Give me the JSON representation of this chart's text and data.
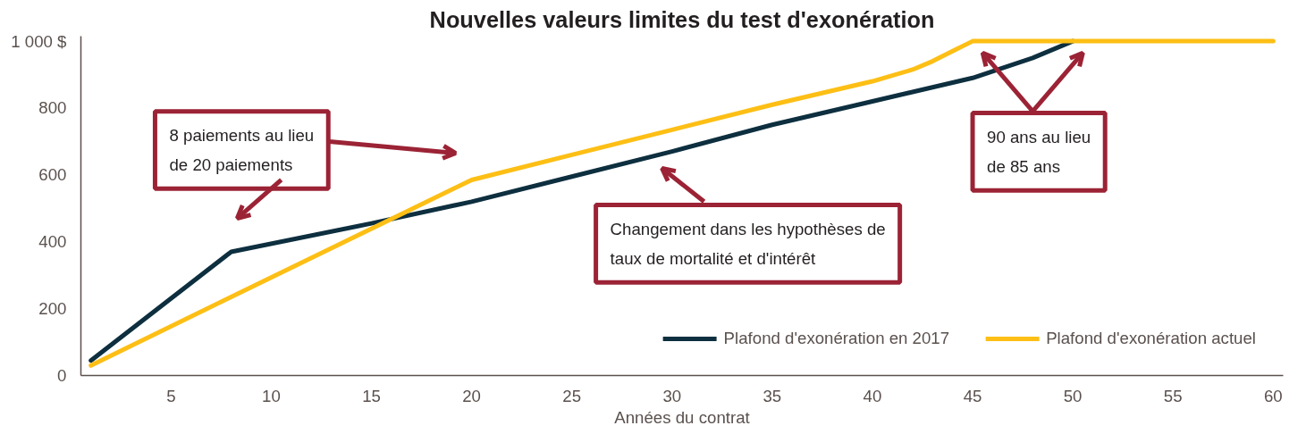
{
  "chart_data": {
    "type": "line",
    "title": "Nouvelles valeurs limites du test d'exonération",
    "xlabel": "Années du contrat",
    "xlim": [
      0.5,
      60.5
    ],
    "xticks": [
      5,
      10,
      15,
      20,
      25,
      30,
      35,
      40,
      45,
      50,
      55,
      60
    ],
    "ylim": [
      0,
      1015
    ],
    "yticks": [
      0,
      200,
      400,
      600,
      800,
      {
        "value": 1000,
        "label": "1 000 $"
      }
    ],
    "grid": false,
    "legend": "bottom",
    "marker": "none",
    "line_style": "solid",
    "series": [
      {
        "name": "Plafond d'exonération en 2017",
        "color": "#0d2f3f",
        "x": [
          1,
          8,
          15,
          20,
          25,
          30,
          35,
          40,
          45,
          48,
          50
        ],
        "values": [
          45,
          370,
          455,
          520,
          595,
          670,
          750,
          820,
          890,
          950,
          1000
        ]
      },
      {
        "name": "Plafond d'exonération actuel",
        "color": "#fdbf15",
        "x": [
          1,
          8,
          20,
          25,
          30,
          35,
          40,
          42,
          43,
          44,
          45,
          50,
          60
        ],
        "values": [
          30,
          235,
          585,
          660,
          735,
          810,
          880,
          915,
          940,
          970,
          1000,
          1000,
          1000
        ]
      }
    ],
    "annotations": [
      "8 paiements au lieu de 20 paiements",
      "Changement dans les hypothèses de taux de mortalité et d'intérêt",
      "90 ans au lieu de 85 ans"
    ]
  }
}
